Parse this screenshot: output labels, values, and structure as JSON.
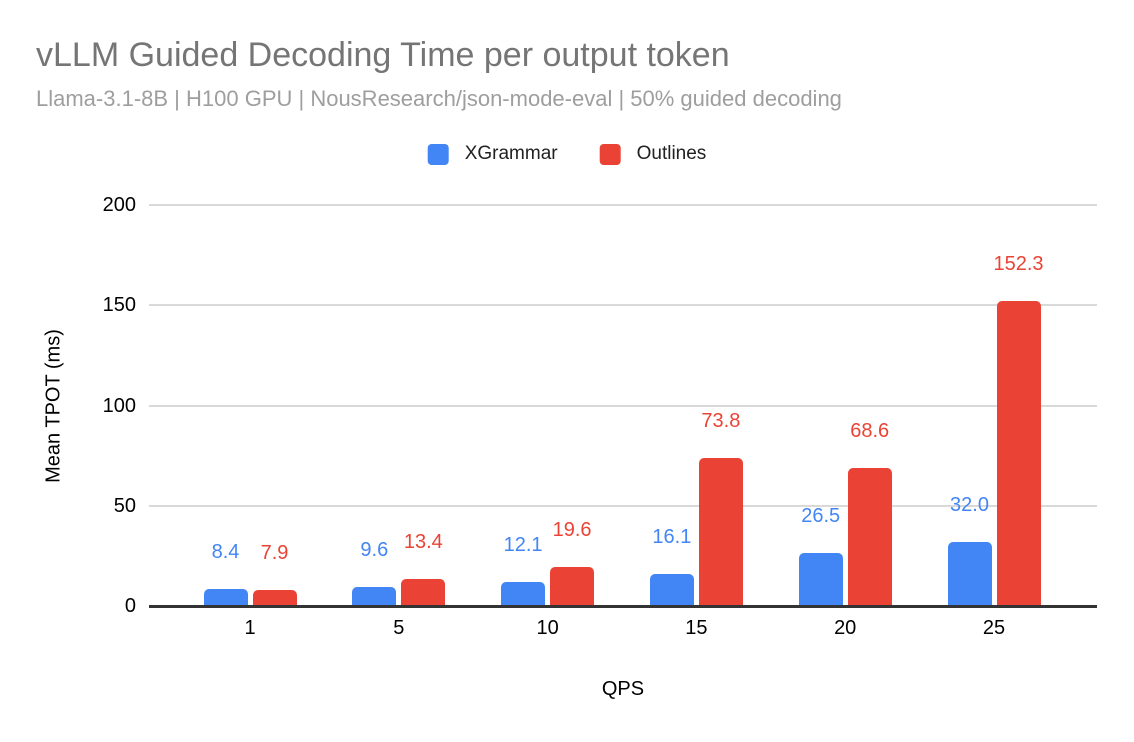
{
  "header": {
    "title": "vLLM Guided Decoding Time per output token",
    "subtitle": "Llama-3.1-8B | H100 GPU | NousResearch/json-mode-eval | 50% guided decoding"
  },
  "chart_data": {
    "type": "bar",
    "title": "vLLM Guided Decoding Time per output token",
    "subtitle": "Llama-3.1-8B | H100 GPU | NousResearch/json-mode-eval | 50% guided decoding",
    "categories": [
      "1",
      "5",
      "10",
      "15",
      "20",
      "25"
    ],
    "series": [
      {
        "name": "XGrammar",
        "color": "#4285F4",
        "values": [
          8.4,
          9.6,
          12.1,
          16.1,
          26.5,
          32.0
        ],
        "value_labels": [
          "8.4",
          "9.6",
          "12.1",
          "16.1",
          "26.5",
          "32.0"
        ]
      },
      {
        "name": "Outlines",
        "color": "#EA4335",
        "values": [
          7.9,
          13.4,
          19.6,
          73.8,
          68.6,
          152.3
        ],
        "value_labels": [
          "7.9",
          "13.4",
          "19.6",
          "73.8",
          "68.6",
          "152.3"
        ]
      }
    ],
    "xlabel": "QPS",
    "ylabel": "Mean TPOT (ms)",
    "ylim": [
      0,
      200
    ],
    "yticks": [
      0,
      50,
      100,
      150,
      200
    ],
    "grid": true,
    "legend_position": "top",
    "data_labels": true
  },
  "colors": {
    "title_text": "#757575",
    "subtitle_text": "#9e9e9e",
    "legend_text": "#212121",
    "axis_text": "#000000",
    "gridline": "#d9d9d9",
    "axis_line": "#333333",
    "series_blue": "#4285F4",
    "series_red": "#EA4335",
    "background": "#ffffff"
  }
}
